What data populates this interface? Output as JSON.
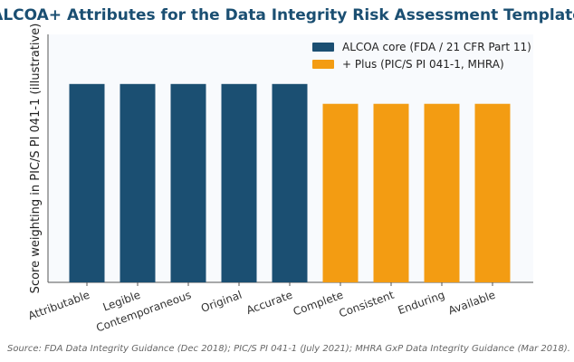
{
  "chart_data": {
    "type": "bar",
    "title": "ALCOA+ Attributes for the Data Integrity Risk Assessment Template",
    "ylabel": "Score weighting in PIC/S PI 041-1 (illustrative)",
    "xlabel": "",
    "categories": [
      "Attributable",
      "Legible",
      "Contemporaneous",
      "Original",
      "Accurate",
      "Complete",
      "Consistent",
      "Enduring",
      "Available"
    ],
    "series": [
      {
        "name": "ALCOA core (FDA / 21 CFR Part 11)",
        "color": "#1b4f72",
        "values": [
          1.0,
          1.0,
          1.0,
          1.0,
          1.0,
          null,
          null,
          null,
          null
        ]
      },
      {
        "name": "+ Plus (PIC/S PI 041-1, MHRA)",
        "color": "#f39c12",
        "values": [
          null,
          null,
          null,
          null,
          null,
          0.9,
          0.9,
          0.9,
          0.9
        ]
      }
    ],
    "ylim": [
      0,
      1.25
    ],
    "grid": false,
    "legend_position": "top-right",
    "plot_background": "#f8fafd",
    "source": "Source: FDA Data Integrity Guidance (Dec 2018); PIC/S PI 041-1 (July 2021); MHRA GxP Data Integrity Guidance (Mar 2018)."
  }
}
